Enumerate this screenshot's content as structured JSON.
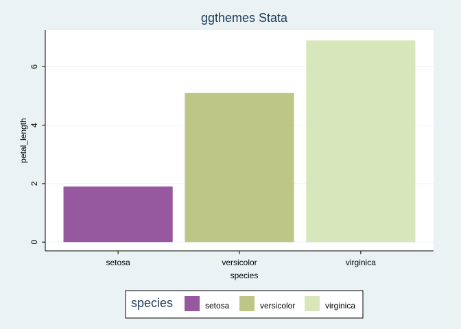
{
  "chart_data": {
    "type": "bar",
    "title": "ggthemes Stata",
    "xlabel": "species",
    "ylabel": "petal_length",
    "categories": [
      "setosa",
      "versicolor",
      "virginica"
    ],
    "values": [
      1.9,
      5.1,
      6.9
    ],
    "colors": [
      "#96589e",
      "#bdc687",
      "#d8e7bb"
    ],
    "ylim": [
      -0.3,
      7.25
    ],
    "yticks": [
      0,
      2,
      4,
      6
    ],
    "grid": true,
    "legend": {
      "title": "species",
      "position": "bottom",
      "entries": [
        "setosa",
        "versicolor",
        "virginica"
      ]
    }
  }
}
